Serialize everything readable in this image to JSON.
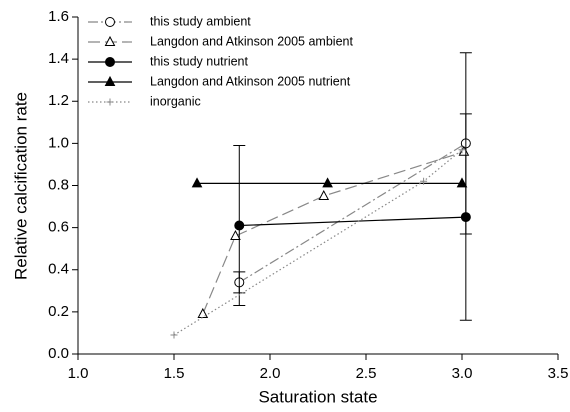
{
  "chart_data": {
    "type": "line",
    "x_label": "Saturation state",
    "y_label": "Relative calcification rate",
    "xlim": [
      1.0,
      3.5
    ],
    "xticks": [
      {
        "value": 1.0,
        "label": "1.0"
      },
      {
        "value": 1.5,
        "label": "1.5"
      },
      {
        "value": 2.0,
        "label": "2.0"
      },
      {
        "value": 2.5,
        "label": "2.5"
      },
      {
        "value": 3.0,
        "label": "3.0"
      },
      {
        "value": 3.5,
        "label": "3.5"
      }
    ],
    "ylim": [
      0.0,
      1.6
    ],
    "yticks": [
      {
        "value": 0.0,
        "label": "0.0"
      },
      {
        "value": 0.2,
        "label": "0.2"
      },
      {
        "value": 0.4,
        "label": "0.4"
      },
      {
        "value": 0.6,
        "label": "0.6"
      },
      {
        "value": 0.8,
        "label": "0.8"
      },
      {
        "value": 1.0,
        "label": "1.0"
      },
      {
        "value": 1.2,
        "label": "1.2"
      },
      {
        "value": 1.4,
        "label": "1.4"
      },
      {
        "value": 1.6,
        "label": "1.6"
      }
    ],
    "legend": "upper left",
    "series": [
      {
        "name": "this study ambient",
        "color": "#888888",
        "line_style": "dashdot",
        "marker": "open-circle",
        "x": [
          1.84,
          3.02
        ],
        "values": [
          0.34,
          1.0
        ],
        "errors": [
          0.05,
          0.43
        ]
      },
      {
        "name": "Langdon and Atkinson 2005 ambient",
        "color": "#888888",
        "line_style": "longdash",
        "marker": "open-triangle",
        "x": [
          1.65,
          1.82,
          2.28,
          3.01
        ],
        "values": [
          0.19,
          0.56,
          0.75,
          0.96
        ]
      },
      {
        "name": "this study nutrient",
        "color": "#000000",
        "line_style": "solid",
        "marker": "filled-circle",
        "x": [
          1.84,
          3.02
        ],
        "values": [
          0.61,
          0.65
        ],
        "errors": [
          0.38,
          0.49
        ]
      },
      {
        "name": "Langdon and Atkinson 2005 nutrient",
        "color": "#000000",
        "line_style": "solid",
        "marker": "filled-triangle",
        "x": [
          1.62,
          2.3,
          3.0
        ],
        "values": [
          0.81,
          0.81,
          0.81
        ]
      },
      {
        "name": "inorganic",
        "color": "#888888",
        "line_style": "dotted",
        "marker": "plus",
        "x": [
          1.5,
          2.8,
          3.0
        ],
        "values": [
          0.09,
          0.82,
          0.97
        ]
      }
    ]
  }
}
